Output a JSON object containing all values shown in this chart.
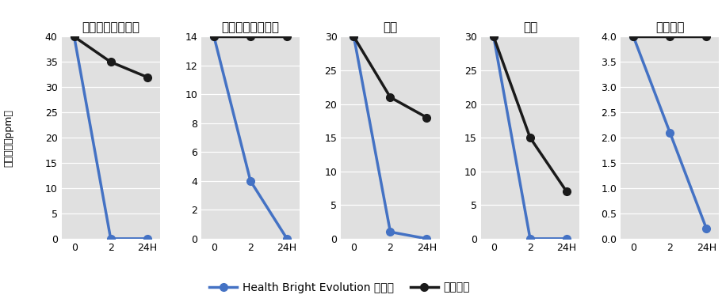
{
  "subplots": [
    {
      "title": "ホルムアルデヒド",
      "ylim": [
        0,
        40
      ],
      "yticks": [
        0,
        5,
        10,
        15,
        20,
        25,
        30,
        35,
        40
      ],
      "blue_line": [
        40,
        0,
        0
      ],
      "black_line": [
        40,
        35,
        32
      ]
    },
    {
      "title": "アセトアルデヒド",
      "ylim": [
        0,
        14
      ],
      "yticks": [
        0,
        2,
        4,
        6,
        8,
        10,
        12,
        14
      ],
      "blue_line": [
        14,
        4,
        0
      ],
      "black_line": [
        14,
        14,
        14
      ]
    },
    {
      "title": "酢酸",
      "ylim": [
        0,
        30
      ],
      "yticks": [
        0,
        5,
        10,
        15,
        20,
        25,
        30
      ],
      "blue_line": [
        30,
        1,
        0
      ],
      "black_line": [
        30,
        21,
        18
      ]
    },
    {
      "title": "ギ酸",
      "ylim": [
        0,
        30
      ],
      "yticks": [
        0,
        5,
        10,
        15,
        20,
        25,
        30
      ],
      "blue_line": [
        30,
        0,
        0
      ],
      "black_line": [
        30,
        15,
        7
      ]
    },
    {
      "title": "硫化水素",
      "ylim": [
        0,
        4.0
      ],
      "yticks": [
        0.0,
        0.5,
        1.0,
        1.5,
        2.0,
        2.5,
        3.0,
        3.5,
        4.0
      ],
      "blue_line": [
        4.0,
        2.1,
        0.2
      ],
      "black_line": [
        4.0,
        4.0,
        4.0
      ]
    }
  ],
  "x_labels": [
    "0",
    "2",
    "24H"
  ],
  "x_values": [
    0,
    1,
    2
  ],
  "ylabel_chars": [
    "残",
    "留",
    "濃",
    "度",
    "（",
    "p",
    "p",
    "m",
    "）"
  ],
  "blue_color": "#4472C4",
  "black_color": "#1a1a1a",
  "bg_color": "#e0e0e0",
  "legend_blue_label": "Health Bright Evolution 加工品",
  "legend_black_label": "ブランク",
  "title_fontsize": 11,
  "label_fontsize": 9,
  "tick_fontsize": 9,
  "marker_size": 7,
  "line_width": 2.5
}
